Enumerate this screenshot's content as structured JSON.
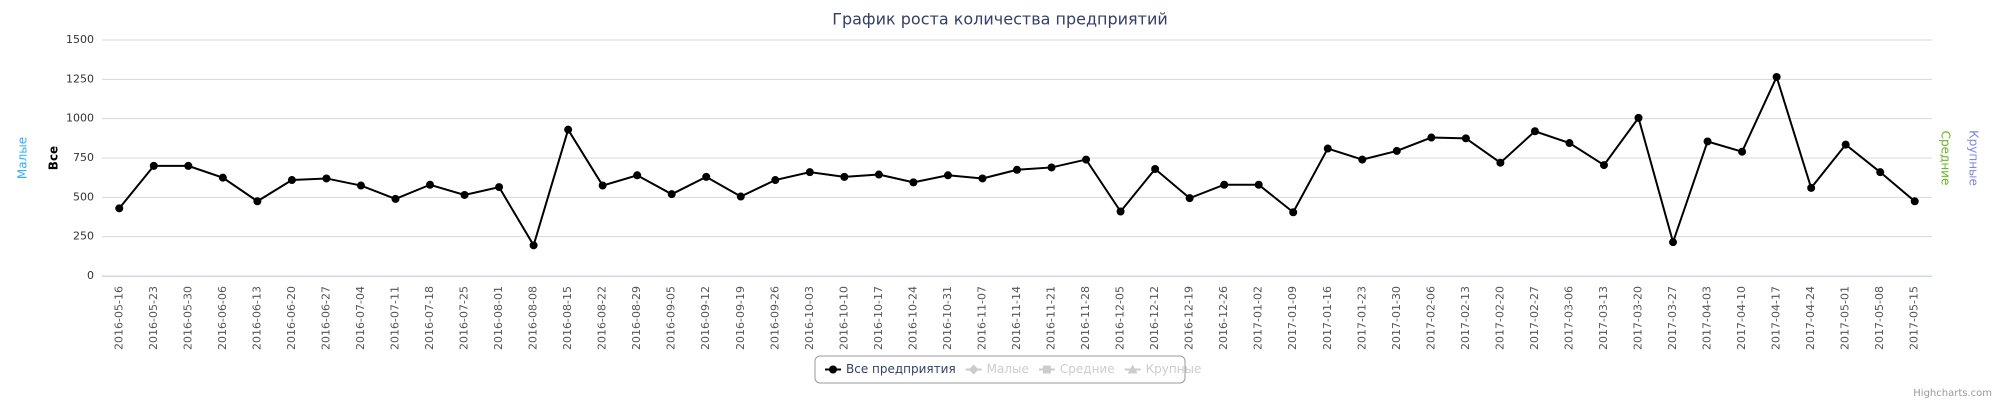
{
  "chart_data": {
    "type": "line",
    "title": "График роста количества предприятий",
    "categories": [
      "2016-05-16",
      "2016-05-23",
      "2016-05-30",
      "2016-06-06",
      "2016-06-13",
      "2016-06-20",
      "2016-06-27",
      "2016-07-04",
      "2016-07-11",
      "2016-07-18",
      "2016-07-25",
      "2016-08-01",
      "2016-08-08",
      "2016-08-15",
      "2016-08-22",
      "2016-08-29",
      "2016-09-05",
      "2016-09-12",
      "2016-09-19",
      "2016-09-26",
      "2016-10-03",
      "2016-10-10",
      "2016-10-17",
      "2016-10-24",
      "2016-10-31",
      "2016-11-07",
      "2016-11-14",
      "2016-11-21",
      "2016-11-28",
      "2016-12-05",
      "2016-12-12",
      "2016-12-19",
      "2016-12-26",
      "2017-01-02",
      "2017-01-09",
      "2017-01-16",
      "2017-01-23",
      "2017-01-30",
      "2017-02-06",
      "2017-02-13",
      "2017-02-20",
      "2017-02-27",
      "2017-03-06",
      "2017-03-13",
      "2017-03-20",
      "2017-03-27",
      "2017-04-03",
      "2017-04-10",
      "2017-04-17",
      "2017-04-24",
      "2017-05-01",
      "2017-05-08",
      "2017-05-15"
    ],
    "series": [
      {
        "name": "Все предприятия",
        "color": "#000000",
        "marker": "circle",
        "visible": true,
        "values": [
          430,
          700,
          700,
          625,
          475,
          610,
          620,
          575,
          490,
          580,
          515,
          565,
          195,
          930,
          575,
          640,
          520,
          630,
          505,
          610,
          660,
          630,
          645,
          595,
          640,
          620,
          675,
          690,
          740,
          410,
          680,
          495,
          580,
          580,
          405,
          810,
          740,
          795,
          880,
          875,
          720,
          920,
          845,
          705,
          1005,
          215,
          855,
          790,
          1265,
          560,
          835,
          660,
          475
        ]
      },
      {
        "name": "Малые",
        "color": "#2caffe",
        "marker": "diamond",
        "visible": false
      },
      {
        "name": "Средние",
        "color": "#7cc62f",
        "marker": "square",
        "visible": false
      },
      {
        "name": "Крупные",
        "color": "#8085e9",
        "marker": "triangle",
        "visible": false
      }
    ],
    "axis_titles": [
      {
        "title": "Малые",
        "color": "#2caffe",
        "side": "left"
      },
      {
        "title": "Все",
        "color": "#000000",
        "side": "left"
      },
      {
        "title": "Средние",
        "color": "#6cb62a",
        "side": "right"
      },
      {
        "title": "Крупные",
        "color": "#8085e9",
        "side": "right"
      }
    ],
    "ylim": [
      0,
      1500
    ],
    "yticks": [
      0,
      250,
      500,
      750,
      1000,
      1250,
      1500
    ],
    "grid": true,
    "legend": "bottom",
    "credits": "Highcharts.com"
  }
}
